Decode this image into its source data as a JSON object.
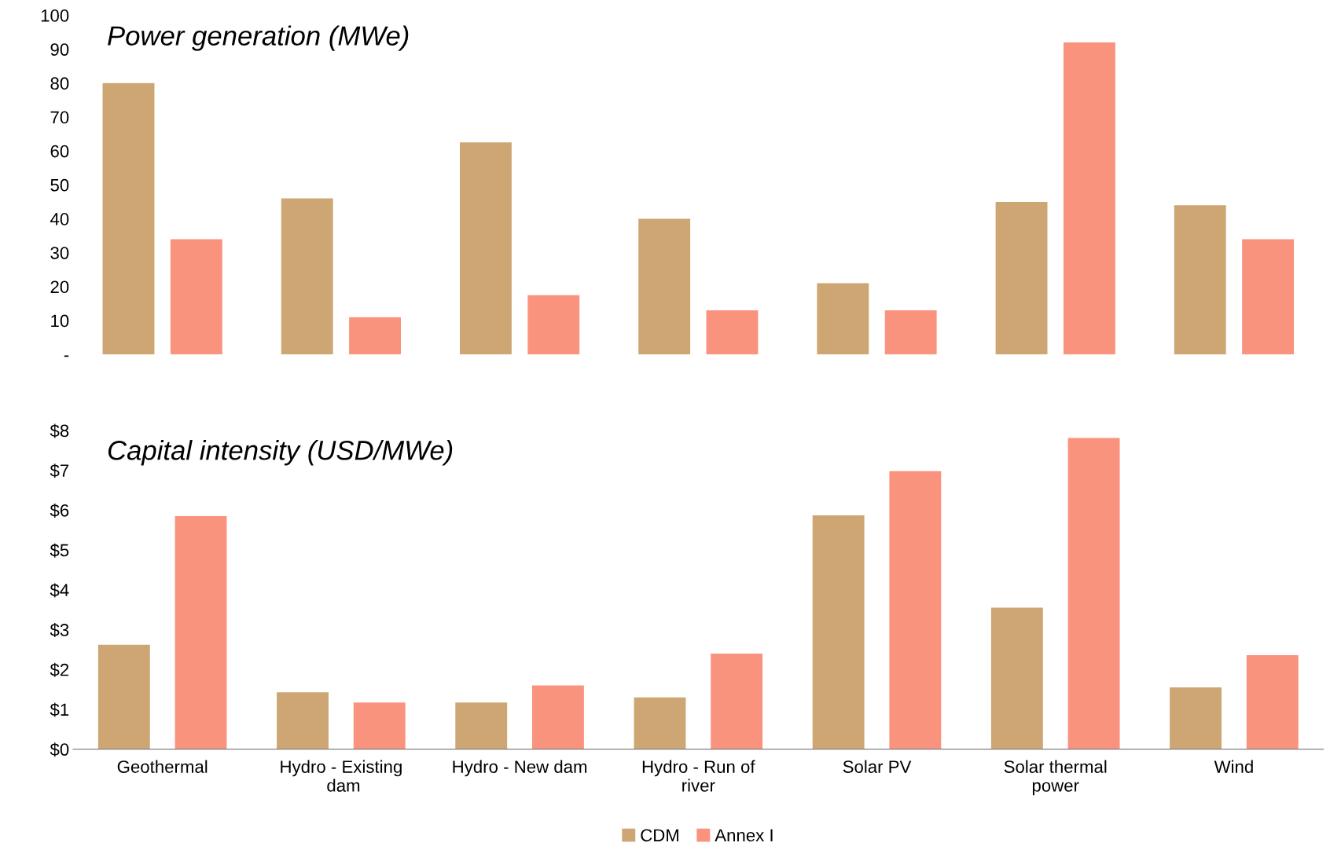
{
  "chart_data": [
    {
      "type": "bar",
      "title": "Power generation (MWe)",
      "categories": [
        null,
        null,
        null,
        null,
        null,
        null,
        null
      ],
      "series": [
        {
          "color": "#cda673",
          "values": [
            80,
            46,
            62.5,
            40,
            21,
            45,
            44
          ]
        },
        {
          "color": "#fa937d",
          "values": [
            34,
            11,
            17.5,
            13,
            13,
            92,
            34
          ]
        }
      ],
      "ylim": [
        0,
        100
      ],
      "yticks": [
        {
          "value": 0,
          "label": "-"
        },
        10,
        20,
        30,
        40,
        50,
        60,
        70,
        80,
        90,
        100
      ],
      "tick_labels": "y",
      "grid": false,
      "legend": false
    },
    {
      "type": "bar",
      "title": "Capital intensity (USD/MWe)",
      "categories": [
        "Geothermal",
        "Hydro - Existing dam",
        "Hydro - New dam",
        "Hydro - Run of river",
        "Solar PV",
        "Solar thermal power",
        "Wind"
      ],
      "series": [
        {
          "name": "CDM",
          "color": "#cda673",
          "values": [
            2.62,
            1.43,
            1.17,
            1.3,
            5.87,
            3.55,
            1.55
          ]
        },
        {
          "name": "Annex I",
          "color": "#fa937d",
          "values": [
            5.85,
            1.17,
            1.6,
            2.4,
            6.98,
            7.81,
            2.36
          ]
        }
      ],
      "ylim": [
        0,
        8
      ],
      "yticks": [
        {
          "value": 0,
          "label": "$0"
        },
        {
          "value": 1,
          "label": "$1"
        },
        {
          "value": 2,
          "label": "$2"
        },
        {
          "value": 3,
          "label": "$3"
        },
        {
          "value": 4,
          "label": "$4"
        },
        {
          "value": 5,
          "label": "$5"
        },
        {
          "value": 6,
          "label": "$6"
        },
        {
          "value": 7,
          "label": "$7"
        },
        {
          "value": 8,
          "label": "$8"
        }
      ],
      "grid": false,
      "legend": "bottom"
    }
  ]
}
